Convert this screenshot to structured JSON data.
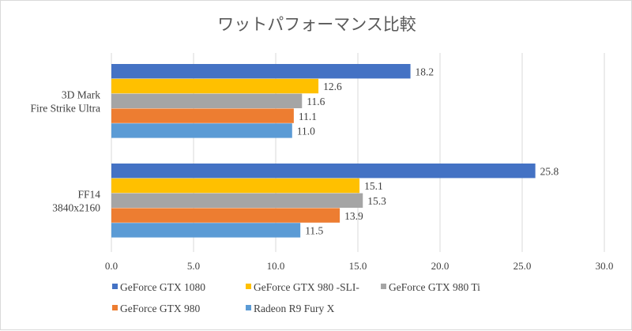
{
  "chart_data": {
    "type": "bar",
    "orientation": "horizontal",
    "title": "ワットパフォーマンス比較",
    "xlabel": "",
    "ylabel": "",
    "xlim": [
      0,
      30
    ],
    "x_ticks": [
      "0.0",
      "5.0",
      "10.0",
      "15.0",
      "20.0",
      "25.0",
      "30.0"
    ],
    "x_tick_values": [
      0,
      5,
      10,
      15,
      20,
      25,
      30
    ],
    "grid": true,
    "legend_position": "bottom",
    "categories": [
      [
        "3D Mark",
        "Fire Strike Ultra"
      ],
      [
        "FF14",
        "3840x2160"
      ]
    ],
    "series": [
      {
        "name": "GeForce GTX 1080",
        "color": "#4472c4",
        "values": [
          18.2,
          25.8
        ],
        "labels": [
          "18.2",
          "25.8"
        ]
      },
      {
        "name": "GeForce GTX 980 -SLI-",
        "color": "#ffc000",
        "values": [
          12.6,
          15.1
        ],
        "labels": [
          "12.6",
          "15.1"
        ]
      },
      {
        "name": "GeForce GTX 980 Ti",
        "color": "#a5a5a5",
        "values": [
          11.6,
          15.3
        ],
        "labels": [
          "11.6",
          "15.3"
        ]
      },
      {
        "name": "GeForce GTX 980",
        "color": "#ed7d31",
        "values": [
          11.1,
          13.9
        ],
        "labels": [
          "11.1",
          "13.9"
        ]
      },
      {
        "name": "Radeon R9 Fury X",
        "color": "#5b9bd5",
        "values": [
          11.0,
          11.5
        ],
        "labels": [
          "11.0",
          "11.5"
        ]
      }
    ]
  }
}
